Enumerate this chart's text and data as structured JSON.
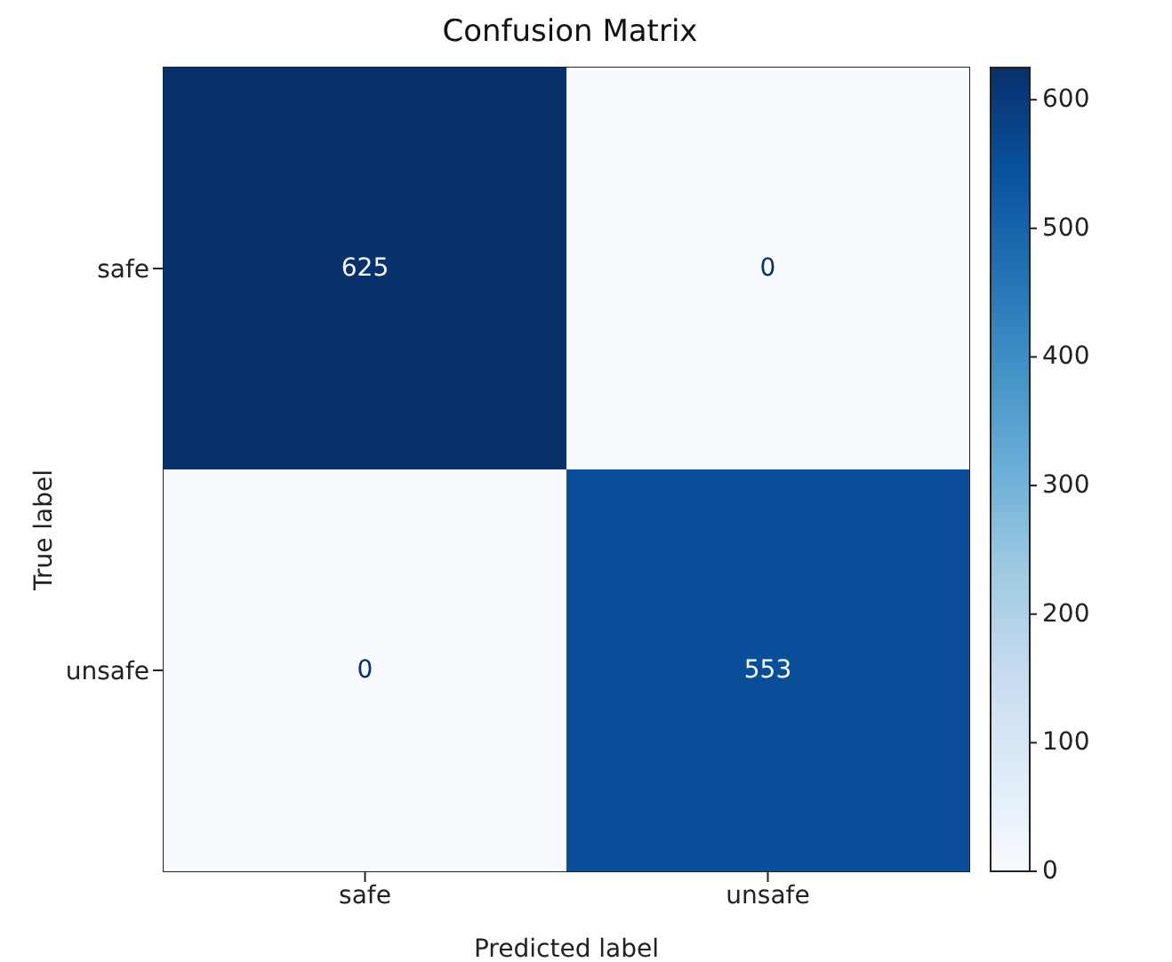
{
  "chart_data": {
    "type": "heatmap",
    "title": "Confusion Matrix",
    "xlabel": "Predicted label",
    "ylabel": "True label",
    "categories": [
      "safe",
      "unsafe"
    ],
    "y_categories": [
      "safe",
      "unsafe"
    ],
    "cells": [
      [
        625,
        0
      ],
      [
        0,
        553
      ]
    ],
    "clim": [
      0,
      625
    ],
    "cticks": [
      0,
      100,
      200,
      300,
      400,
      500,
      600
    ],
    "data_labels": true
  }
}
